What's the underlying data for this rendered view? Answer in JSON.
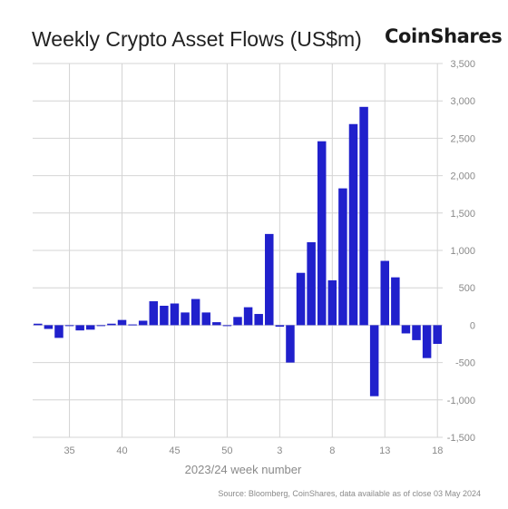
{
  "header": {
    "title": "Weekly Crypto Asset Flows (US$m)",
    "brand": "CoinShares"
  },
  "footer": {
    "source": "Source: Bloomberg, CoinShares, data available as of close 03 May 2024"
  },
  "colors": {
    "bar": "#2020cc",
    "grid": "#d4d4d4",
    "axis_text": "#8a8a8a"
  },
  "chart_data": {
    "type": "bar",
    "title": "Weekly Crypto Asset Flows (US$m)",
    "xlabel": "2023/24 week number",
    "ylabel": "",
    "ylim": [
      -1500,
      3500
    ],
    "y_ticks": [
      3500,
      3000,
      2500,
      2000,
      1500,
      1000,
      500,
      0,
      -500,
      -1000,
      -1500
    ],
    "y_tick_labels": [
      "3,500",
      "3,000",
      "2,500",
      "2,000",
      "1,500",
      "1,000",
      "500",
      "0",
      "-500",
      "-1,000",
      "-1,500"
    ],
    "x_tick_labels": [
      "35",
      "40",
      "45",
      "50",
      "3",
      "8",
      "13",
      "18"
    ],
    "y_axis_position": "right",
    "grid": true,
    "categories": [
      "32",
      "33",
      "34",
      "35",
      "36",
      "37",
      "38",
      "39",
      "40",
      "41",
      "42",
      "43",
      "44",
      "45",
      "46",
      "47",
      "48",
      "49",
      "50",
      "51",
      "52",
      "1",
      "2",
      "3",
      "4",
      "5",
      "6",
      "7",
      "8",
      "9",
      "10",
      "11",
      "12",
      "13",
      "14",
      "15",
      "16",
      "17",
      "18"
    ],
    "values": [
      20,
      -50,
      -170,
      0,
      -70,
      -60,
      0,
      20,
      70,
      10,
      60,
      320,
      260,
      290,
      170,
      350,
      170,
      40,
      -10,
      110,
      240,
      150,
      1220,
      -20,
      -500,
      700,
      1110,
      2460,
      600,
      1830,
      2690,
      2920,
      -950,
      860,
      640,
      -110,
      -200,
      -440,
      -250
    ]
  }
}
